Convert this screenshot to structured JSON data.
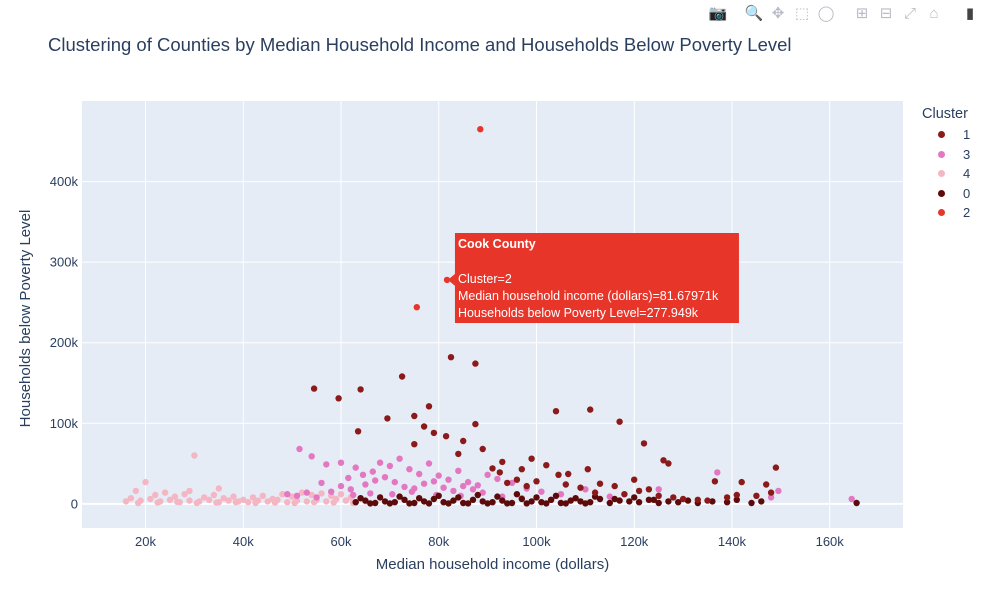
{
  "modebar": {
    "buttons": [
      {
        "name": "camera-icon",
        "glyph": "📷"
      },
      {
        "name": "zoom-icon",
        "glyph": "🔍"
      },
      {
        "name": "pan-icon",
        "glyph": "✥"
      },
      {
        "name": "box-select-icon",
        "glyph": "⬚"
      },
      {
        "name": "lasso-select-icon",
        "glyph": "◯"
      },
      {
        "name": "zoom-in-icon",
        "glyph": "⊞"
      },
      {
        "name": "zoom-out-icon",
        "glyph": "⊟"
      },
      {
        "name": "autoscale-icon",
        "glyph": "⤢"
      },
      {
        "name": "home-icon",
        "glyph": "⌂"
      },
      {
        "name": "plotly-logo-icon",
        "glyph": "▮"
      }
    ]
  },
  "chart_data": {
    "type": "scatter",
    "title": "Clustering of Counties by Median Household Income and Households Below Poverty Level",
    "xlabel": "Median household income (dollars)",
    "ylabel": "Households below Poverty Level",
    "xlim": [
      7000,
      175000
    ],
    "ylim": [
      -30000,
      500000
    ],
    "xticks": [
      {
        "value": 20000,
        "label": "20k"
      },
      {
        "value": 40000,
        "label": "40k"
      },
      {
        "value": 60000,
        "label": "60k"
      },
      {
        "value": 80000,
        "label": "80k"
      },
      {
        "value": 100000,
        "label": "100k"
      },
      {
        "value": 120000,
        "label": "120k"
      },
      {
        "value": 140000,
        "label": "140k"
      },
      {
        "value": 160000,
        "label": "160k"
      }
    ],
    "yticks": [
      {
        "value": 0,
        "label": "0"
      },
      {
        "value": 100000,
        "label": "100k"
      },
      {
        "value": 200000,
        "label": "200k"
      },
      {
        "value": 300000,
        "label": "300k"
      },
      {
        "value": 400000,
        "label": "400k"
      }
    ],
    "grid": true,
    "legend": {
      "title": "Cluster",
      "position": "top-right"
    },
    "series": [
      {
        "name": "1",
        "color": "#8b1a1a",
        "points": [
          [
            54500,
            143000
          ],
          [
            59500,
            131000
          ],
          [
            64000,
            142000
          ],
          [
            72500,
            158000
          ],
          [
            82500,
            182000
          ],
          [
            87500,
            174000
          ],
          [
            78000,
            121000
          ],
          [
            63500,
            90000
          ],
          [
            69500,
            106000
          ],
          [
            75000,
            109000
          ],
          [
            77000,
            96000
          ],
          [
            79000,
            88000
          ],
          [
            81500,
            84000
          ],
          [
            85000,
            78000
          ],
          [
            87500,
            99000
          ],
          [
            89000,
            68000
          ],
          [
            75000,
            74000
          ],
          [
            84000,
            62000
          ],
          [
            104000,
            115000
          ],
          [
            111000,
            117000
          ],
          [
            117000,
            102000
          ],
          [
            122000,
            75000
          ],
          [
            126000,
            54000
          ],
          [
            127000,
            50000
          ],
          [
            136500,
            28000
          ],
          [
            142000,
            27000
          ],
          [
            147000,
            24000
          ],
          [
            149000,
            45000
          ],
          [
            110500,
            43000
          ],
          [
            106500,
            37000
          ],
          [
            102000,
            48000
          ],
          [
            99000,
            56000
          ],
          [
            97000,
            43000
          ],
          [
            93000,
            52000
          ],
          [
            92500,
            39000
          ],
          [
            91000,
            44000
          ],
          [
            96000,
            30000
          ],
          [
            104500,
            36000
          ],
          [
            120000,
            30000
          ],
          [
            113000,
            25000
          ],
          [
            116000,
            22000
          ],
          [
            121000,
            16000
          ],
          [
            123000,
            18000
          ],
          [
            125000,
            10000
          ],
          [
            128000,
            8000
          ],
          [
            130000,
            6000
          ],
          [
            133000,
            5000
          ],
          [
            135000,
            4000
          ],
          [
            139000,
            8000
          ],
          [
            141000,
            11000
          ],
          [
            145000,
            10000
          ],
          [
            148000,
            14000
          ],
          [
            100000,
            28000
          ],
          [
            106000,
            24000
          ],
          [
            109000,
            20000
          ],
          [
            112000,
            14000
          ],
          [
            118000,
            12000
          ],
          [
            98000,
            22000
          ],
          [
            94000,
            26000
          ]
        ]
      },
      {
        "name": "3",
        "color": "#e377c2",
        "points": [
          [
            51500,
            68000
          ],
          [
            54000,
            59000
          ],
          [
            57000,
            49000
          ],
          [
            60000,
            51000
          ],
          [
            61500,
            32000
          ],
          [
            63000,
            45000
          ],
          [
            64500,
            36000
          ],
          [
            66500,
            40000
          ],
          [
            68000,
            51000
          ],
          [
            70000,
            47000
          ],
          [
            72000,
            56000
          ],
          [
            74000,
            43000
          ],
          [
            76000,
            37000
          ],
          [
            78000,
            50000
          ],
          [
            80000,
            35000
          ],
          [
            82000,
            30000
          ],
          [
            84000,
            41000
          ],
          [
            86000,
            27000
          ],
          [
            88000,
            23000
          ],
          [
            90000,
            36000
          ],
          [
            92000,
            31000
          ],
          [
            95000,
            26000
          ],
          [
            98000,
            19000
          ],
          [
            101000,
            15000
          ],
          [
            105000,
            12000
          ],
          [
            110000,
            18000
          ],
          [
            115000,
            9000
          ],
          [
            125000,
            18000
          ],
          [
            137000,
            39000
          ],
          [
            149500,
            16000
          ],
          [
            148000,
            8000
          ],
          [
            164500,
            6000
          ],
          [
            60000,
            22000
          ],
          [
            62000,
            18000
          ],
          [
            65000,
            24000
          ],
          [
            67000,
            29000
          ],
          [
            69000,
            33000
          ],
          [
            71000,
            27000
          ],
          [
            73000,
            21000
          ],
          [
            75000,
            19000
          ],
          [
            77000,
            25000
          ],
          [
            79000,
            28000
          ],
          [
            81000,
            20000
          ],
          [
            83000,
            16000
          ],
          [
            85000,
            22000
          ],
          [
            87000,
            18000
          ],
          [
            89000,
            14000
          ],
          [
            56000,
            26000
          ],
          [
            58000,
            15000
          ],
          [
            53000,
            14000
          ],
          [
            51000,
            10000
          ],
          [
            49000,
            12000
          ],
          [
            55000,
            8000
          ],
          [
            62500,
            11000
          ],
          [
            66000,
            13000
          ],
          [
            70500,
            12000
          ],
          [
            74500,
            15000
          ],
          [
            79500,
            11000
          ],
          [
            84500,
            10000
          ],
          [
            93000,
            9000
          ],
          [
            97000,
            7000
          ],
          [
            103000,
            5000
          ]
        ]
      },
      {
        "name": "4",
        "color": "#f4b6c2",
        "points": [
          [
            30000,
            60000
          ],
          [
            20000,
            27000
          ],
          [
            35000,
            19000
          ],
          [
            29000,
            16000
          ],
          [
            24000,
            14000
          ],
          [
            18000,
            16000
          ],
          [
            22000,
            11000
          ],
          [
            26000,
            9000
          ],
          [
            28000,
            12000
          ],
          [
            32000,
            8000
          ],
          [
            34000,
            11000
          ],
          [
            36000,
            7000
          ],
          [
            38000,
            9000
          ],
          [
            40000,
            5000
          ],
          [
            42000,
            8000
          ],
          [
            44000,
            10000
          ],
          [
            46000,
            6000
          ],
          [
            48000,
            12000
          ],
          [
            50000,
            9000
          ],
          [
            52000,
            14000
          ],
          [
            54000,
            11000
          ],
          [
            56000,
            13000
          ],
          [
            58000,
            10000
          ],
          [
            60000,
            12000
          ],
          [
            62000,
            8000
          ],
          [
            17000,
            7000
          ],
          [
            19000,
            4000
          ],
          [
            21000,
            6000
          ],
          [
            23000,
            3000
          ],
          [
            25000,
            5000
          ],
          [
            27000,
            2000
          ],
          [
            29000,
            4000
          ],
          [
            31000,
            3000
          ],
          [
            33000,
            5000
          ],
          [
            35000,
            2000
          ],
          [
            37000,
            4000
          ],
          [
            39000,
            3000
          ],
          [
            41000,
            2000
          ],
          [
            43000,
            4000
          ],
          [
            45000,
            3000
          ],
          [
            47000,
            5000
          ],
          [
            49000,
            2000
          ],
          [
            51000,
            4000
          ],
          [
            53000,
            3000
          ],
          [
            55000,
            5000
          ],
          [
            57000,
            3000
          ],
          [
            59000,
            6000
          ],
          [
            61000,
            4000
          ],
          [
            63000,
            2000
          ],
          [
            65000,
            3000
          ],
          [
            16000,
            3000
          ],
          [
            18500,
            1000
          ],
          [
            22500,
            1500
          ],
          [
            26500,
            2500
          ],
          [
            30500,
            1000
          ],
          [
            34500,
            1500
          ],
          [
            38500,
            2000
          ],
          [
            42500,
            1000
          ],
          [
            46500,
            1500
          ],
          [
            50500,
            1000
          ],
          [
            54500,
            2000
          ],
          [
            58500,
            1500
          ],
          [
            62500,
            1000
          ]
        ]
      },
      {
        "name": "0",
        "color": "#5c0a0a",
        "points": [
          [
            165500,
            1000
          ],
          [
            63000,
            2000
          ],
          [
            65000,
            4000
          ],
          [
            67000,
            1000
          ],
          [
            69000,
            3000
          ],
          [
            71000,
            2000
          ],
          [
            73000,
            5000
          ],
          [
            75000,
            1000
          ],
          [
            77000,
            3000
          ],
          [
            79000,
            6000
          ],
          [
            81000,
            2000
          ],
          [
            83000,
            4000
          ],
          [
            85000,
            1000
          ],
          [
            87000,
            5000
          ],
          [
            89000,
            3000
          ],
          [
            91000,
            2000
          ],
          [
            93000,
            4000
          ],
          [
            95000,
            1000
          ],
          [
            97000,
            6000
          ],
          [
            99000,
            3000
          ],
          [
            101000,
            2000
          ],
          [
            103000,
            5000
          ],
          [
            105000,
            1000
          ],
          [
            107000,
            4000
          ],
          [
            109000,
            3000
          ],
          [
            111000,
            2000
          ],
          [
            113000,
            6000
          ],
          [
            115000,
            1000
          ],
          [
            117000,
            4000
          ],
          [
            119000,
            3000
          ],
          [
            121000,
            2000
          ],
          [
            123000,
            5000
          ],
          [
            125000,
            1000
          ],
          [
            127000,
            3000
          ],
          [
            129000,
            2000
          ],
          [
            131000,
            4000
          ],
          [
            133000,
            1000
          ],
          [
            136000,
            3000
          ],
          [
            139000,
            2000
          ],
          [
            141000,
            5000
          ],
          [
            144000,
            1000
          ],
          [
            146000,
            3000
          ],
          [
            64000,
            7000
          ],
          [
            68000,
            8000
          ],
          [
            72000,
            9000
          ],
          [
            76000,
            7000
          ],
          [
            80000,
            10000
          ],
          [
            84000,
            8000
          ],
          [
            88000,
            11000
          ],
          [
            92000,
            9000
          ],
          [
            96000,
            12000
          ],
          [
            100000,
            8000
          ],
          [
            104000,
            10000
          ],
          [
            108000,
            7000
          ],
          [
            112000,
            9000
          ],
          [
            116000,
            6000
          ],
          [
            120000,
            8000
          ],
          [
            124000,
            5000
          ],
          [
            66000,
            500
          ],
          [
            70000,
            500
          ],
          [
            74000,
            500
          ],
          [
            78000,
            500
          ],
          [
            82000,
            500
          ],
          [
            86000,
            500
          ],
          [
            90000,
            500
          ],
          [
            94000,
            500
          ],
          [
            98000,
            500
          ],
          [
            102000,
            500
          ],
          [
            106000,
            500
          ],
          [
            110000,
            500
          ]
        ]
      },
      {
        "name": "2",
        "color": "#e8352a",
        "points": [
          [
            88500,
            465000
          ],
          [
            75500,
            244000
          ],
          [
            81680,
            277949
          ]
        ]
      }
    ],
    "hover": {
      "title": "Cook County",
      "lines": [
        "Cluster=2",
        "Median household income (dollars)=81.67971k",
        "Households below Poverty Level=277.949k"
      ],
      "x": 81680,
      "y": 277949,
      "color": "#e8352a"
    }
  }
}
